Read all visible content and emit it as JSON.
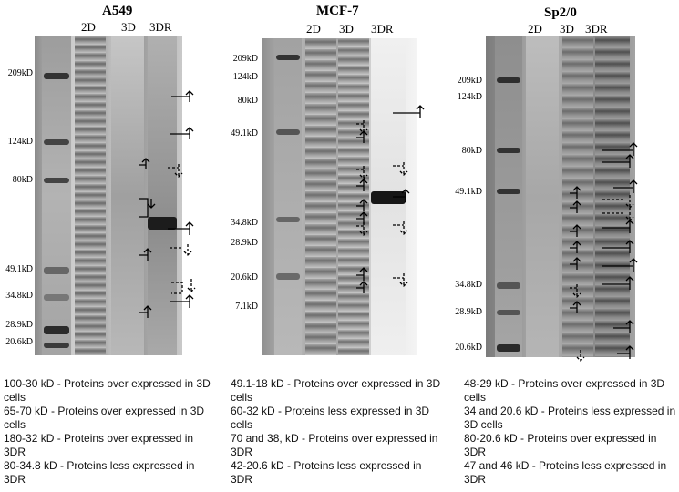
{
  "panels": [
    {
      "title": "A549",
      "lanes": [
        "2D",
        "3D",
        "3DR"
      ],
      "markers": [
        "209kD",
        "124kD",
        "80kD",
        "49.1kD",
        "34.8kD",
        "28.9kD",
        "20.6kD"
      ]
    },
    {
      "title": "MCF-7",
      "lanes": [
        "2D",
        "3D",
        "3DR"
      ],
      "markers": [
        "209kD",
        "124kD",
        "80kD",
        "49.1kD",
        "34.8kD",
        "28.9kD",
        "20.6kD",
        "7.1kD"
      ]
    },
    {
      "title": "Sp2/0",
      "lanes": [
        "2D",
        "3D",
        "3DR"
      ],
      "markers": [
        "209kD",
        "124kD",
        "80kD",
        "49.1kD",
        "34.8kD",
        "28.9kD",
        "20.6kD"
      ]
    }
  ],
  "captions": [
    [
      "100-30 kD - Proteins over expressed in 3D cells",
      "65-70 kD - Proteins over expressed in 3D cells",
      "180-32 kD - Proteins over expressed in 3DR",
      "80-34.8 kD - Proteins less expressed in 3DR"
    ],
    [
      "49.1-18 kD - Proteins over expressed in 3D cells",
      "60-32 kD - Proteins less expressed in 3D cells",
      "70 and 38, kD - Proteins over expressed in 3DR",
      "42-20.6 kD - Proteins less expressed in 3DR"
    ],
    [
      "48-29 kD - Proteins over expressed in 3D cells",
      "34 and 20.6 kD - Proteins less expressed in 3D cells",
      "80-20.6 kD - Proteins over expressed in 3DR",
      "47 and 46 kD - Proteins less expressed in 3DR"
    ]
  ]
}
